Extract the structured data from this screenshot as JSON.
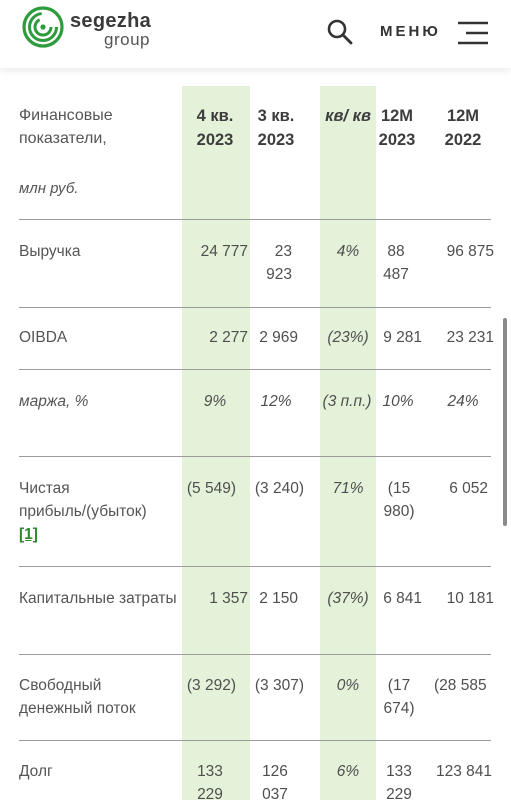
{
  "header": {
    "brand_top": "segezha",
    "brand_bottom": "group",
    "menu_label": "МЕНЮ",
    "logo_icon": "segezha-spiral-logo",
    "accent_color": "#2e9b3c"
  },
  "table": {
    "columns": {
      "label": "Финансовые показатели,",
      "label_units": "млн руб.",
      "c1": "4 кв. 2023",
      "c2": "3 кв. 2023",
      "c3": "кв/ кв",
      "c4": "12M 2023",
      "c5": "12M 2022"
    },
    "rows": [
      {
        "label": "Выручка",
        "c1": "24 777",
        "c2": "23 923",
        "c3": "4%",
        "c4": "88 487",
        "c5": "96 875"
      },
      {
        "label": "OIBDA",
        "c1": "2 277",
        "c2": "2 969",
        "c3": "(23%)",
        "c4": "9 281",
        "c5": "23 231"
      },
      {
        "label": "маржа, %",
        "c1": "9%",
        "c2": "12%",
        "c3": "(3 п.п.)",
        "c4": "10%",
        "c5": "24%"
      },
      {
        "label": "Чистая прибыль/(убыток)",
        "footnote": "[1]",
        "c1": "(5 549)",
        "c2": "(3 240)",
        "c3": "71%",
        "c4": "(15 980)",
        "c5": "6 052"
      },
      {
        "label": "Капитальные затраты",
        "c1": "1 357",
        "c2": "2 150",
        "c3": "(37%)",
        "c4": "6 841",
        "c5": "10 181"
      },
      {
        "label": "Свободный денежный поток",
        "c1": "(3 292)",
        "c2": "(3 307)",
        "c3": "0%",
        "c4": "(17 674)",
        "c5": "(28 585"
      },
      {
        "label": "Долг",
        "c1": "133 229",
        "c2": "126 037",
        "c3": "6%",
        "c4": "133 229",
        "c5": "123 841"
      }
    ],
    "highlight_color": "#e4f2da"
  }
}
